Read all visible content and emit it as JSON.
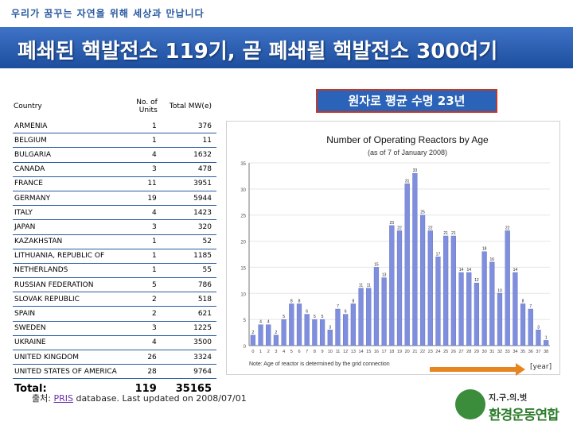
{
  "slogan": "우리가 꿈꾸는 자연을 위해 세상과 만납니다",
  "title": "폐쇄된 핵발전소 119기, 곧 폐쇄될 핵발전소 300여기",
  "badge": "원자로 평균 수명 23년",
  "table": {
    "headers": [
      "Country",
      "No. of Units",
      "Total MW(e)"
    ],
    "rows": [
      [
        "ARMENIA",
        "1",
        "376"
      ],
      [
        "BELGIUM",
        "1",
        "11"
      ],
      [
        "BULGARIA",
        "4",
        "1632"
      ],
      [
        "CANADA",
        "3",
        "478"
      ],
      [
        "FRANCE",
        "11",
        "3951"
      ],
      [
        "GERMANY",
        "19",
        "5944"
      ],
      [
        "ITALY",
        "4",
        "1423"
      ],
      [
        "JAPAN",
        "3",
        "320"
      ],
      [
        "KAZAKHSTAN",
        "1",
        "52"
      ],
      [
        "LITHUANIA, REPUBLIC OF",
        "1",
        "1185"
      ],
      [
        "NETHERLANDS",
        "1",
        "55"
      ],
      [
        "RUSSIAN FEDERATION",
        "5",
        "786"
      ],
      [
        "SLOVAK REPUBLIC",
        "2",
        "518"
      ],
      [
        "SPAIN",
        "2",
        "621"
      ],
      [
        "SWEDEN",
        "3",
        "1225"
      ],
      [
        "UKRAINE",
        "4",
        "3500"
      ],
      [
        "UNITED KINGDOM",
        "26",
        "3324"
      ],
      [
        "UNITED STATES OF AMERICA",
        "28",
        "9764"
      ]
    ],
    "total": [
      "Total:",
      "119",
      "35165"
    ]
  },
  "chart_data": {
    "type": "bar",
    "title": "Number of Operating Reactors by Age",
    "subtitle": "(as of 7 of January 2008)",
    "categories": [
      "0",
      "1",
      "2",
      "3",
      "4",
      "5",
      "6",
      "7",
      "8",
      "9",
      "10",
      "11",
      "12",
      "13",
      "14",
      "15",
      "16",
      "17",
      "18",
      "19",
      "20",
      "21",
      "22",
      "23",
      "24",
      "25",
      "26",
      "27",
      "28",
      "29",
      "30",
      "31",
      "32",
      "33",
      "34",
      "35",
      "36",
      "37",
      "38"
    ],
    "values": [
      2,
      4,
      4,
      2,
      5,
      8,
      8,
      6,
      5,
      5,
      3,
      7,
      6,
      8,
      11,
      11,
      15,
      13,
      23,
      22,
      31,
      33,
      25,
      22,
      17,
      21,
      21,
      14,
      14,
      12,
      18,
      16,
      10,
      22,
      14,
      8,
      7,
      3,
      1
    ],
    "ylim": [
      0,
      35
    ],
    "note": "Note: Age of reactor is determined by the grid connection",
    "xunit": "[year]",
    "color": "#7f8fdd"
  },
  "source": {
    "prefix": "출처: ",
    "link": "PRIS",
    "rest": " database. Last updated on 2008/07/01"
  },
  "logo": {
    "small": "지.구.의.벗",
    "main": "환경운동연합"
  }
}
